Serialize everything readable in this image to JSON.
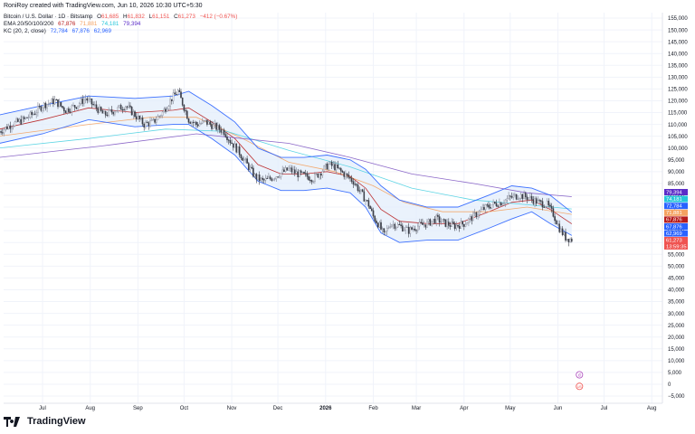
{
  "header": {
    "credit": "RoniRoy created with TradingView.com, Jun 10, 2026 10:30 UTC+5:30",
    "symbol": "Bitcoin / U.S. Dollar · 1D · Bitstamp",
    "ohlc": {
      "o_label": "O",
      "o_value": "61,685",
      "h_label": "H",
      "h_value": "61,832",
      "l_label": "L",
      "l_value": "61,151",
      "c_label": "C",
      "c_value": "61,273",
      "change": "−412 (−0.67%)"
    },
    "ema_label": "EMA 20/50/100/200",
    "ema_values": [
      "67,876",
      "71,881",
      "74,181",
      "79,394"
    ],
    "kc_label": "KC (20, 2, close)",
    "kc_values": [
      "72,784",
      "67,876",
      "62,969"
    ]
  },
  "brand": {
    "name": "TradingView"
  },
  "colors": {
    "up": "#26a69a",
    "down": "#ef5350",
    "candle": "#5d606b",
    "ema20": "#b71c1c",
    "ema50": "#f4a261",
    "ema100": "#4dd0e1",
    "ema200": "#7e57c2",
    "kc_line": "#2962ff",
    "kc_fill": "#e3edfb",
    "grid": "#f0f3fa",
    "text": "#131722"
  },
  "chart_data": {
    "type": "line",
    "ylim": [
      -5000,
      155000
    ],
    "y_ticks": [
      "155,000",
      "150,000",
      "145,000",
      "140,000",
      "135,000",
      "130,000",
      "125,000",
      "120,000",
      "115,000",
      "110,000",
      "105,000",
      "100,000",
      "95,000",
      "90,000",
      "85,000",
      "80,000",
      "75,000",
      "70,000",
      "65,000",
      "60,000",
      "55,000",
      "50,000",
      "45,000",
      "40,000",
      "35,000",
      "30,000",
      "25,000",
      "20,000",
      "15,000",
      "10,000",
      "5,000",
      "0",
      "−5,000"
    ],
    "x_ticks": [
      "Jul",
      "Aug",
      "Sep",
      "Oct",
      "Nov",
      "Dec",
      "2026",
      "Feb",
      "Mar",
      "Apr",
      "May",
      "Jun",
      "Jul",
      "Aug"
    ],
    "x_tick_days": [
      0,
      31,
      62,
      92,
      123,
      153,
      184,
      215,
      243,
      274,
      304,
      335,
      365,
      396
    ],
    "x_start": "2025-07-01",
    "last_close": 61273,
    "countdown": "13:59:35",
    "price_badges": [
      {
        "name": "EMA 200",
        "value": "79,394",
        "color": "#5b2cc8"
      },
      {
        "name": "EMA 100",
        "value": "74,181",
        "color": "#26c6da"
      },
      {
        "name": "KC upper",
        "value": "72,784",
        "color": "#2962ff"
      },
      {
        "name": "EMA 50",
        "value": "71,881",
        "color": "#f4a261"
      },
      {
        "name": "EMA 20",
        "value": "67,876",
        "color": "#b71c1c"
      },
      {
        "name": "KC basis",
        "value": "67,876",
        "color": "#2962ff"
      },
      {
        "name": "KC lower",
        "value": "62,969",
        "color": "#2962ff"
      },
      {
        "name": "Close",
        "value": "61,273",
        "color": "#ef5350"
      }
    ],
    "price_path": [
      [
        -28,
        107000
      ],
      [
        -20,
        110000
      ],
      [
        -12,
        112000
      ],
      [
        -5,
        115000
      ],
      [
        0,
        118000
      ],
      [
        8,
        120000
      ],
      [
        15,
        116000
      ],
      [
        22,
        118000
      ],
      [
        28,
        121000
      ],
      [
        35,
        117000
      ],
      [
        40,
        114000
      ],
      [
        47,
        116000
      ],
      [
        54,
        118000
      ],
      [
        60,
        114000
      ],
      [
        66,
        110000
      ],
      [
        72,
        111000
      ],
      [
        78,
        115000
      ],
      [
        84,
        121000
      ],
      [
        88,
        124000
      ],
      [
        91,
        119000
      ],
      [
        95,
        112000
      ],
      [
        100,
        110000
      ],
      [
        106,
        111000
      ],
      [
        112,
        109000
      ],
      [
        118,
        107000
      ],
      [
        122,
        103000
      ],
      [
        127,
        99000
      ],
      [
        132,
        94000
      ],
      [
        138,
        88000
      ],
      [
        143,
        86000
      ],
      [
        148,
        87000
      ],
      [
        154,
        89000
      ],
      [
        160,
        91000
      ],
      [
        166,
        89000
      ],
      [
        172,
        88000
      ],
      [
        176,
        87000
      ],
      [
        181,
        90000
      ],
      [
        186,
        93000
      ],
      [
        190,
        92000
      ],
      [
        196,
        89000
      ],
      [
        202,
        86000
      ],
      [
        208,
        80000
      ],
      [
        212,
        76000
      ],
      [
        215,
        71000
      ],
      [
        219,
        67000
      ],
      [
        222,
        63000
      ],
      [
        226,
        68000
      ],
      [
        232,
        67000
      ],
      [
        238,
        65000
      ],
      [
        244,
        67000
      ],
      [
        250,
        68000
      ],
      [
        256,
        70000
      ],
      [
        262,
        68000
      ],
      [
        268,
        67000
      ],
      [
        274,
        68000
      ],
      [
        280,
        71000
      ],
      [
        286,
        74000
      ],
      [
        292,
        76000
      ],
      [
        298,
        77000
      ],
      [
        304,
        79000
      ],
      [
        310,
        80000
      ],
      [
        316,
        79000
      ],
      [
        322,
        77000
      ],
      [
        328,
        76000
      ],
      [
        332,
        72000
      ],
      [
        336,
        66000
      ],
      [
        340,
        62000
      ],
      [
        344,
        61273
      ]
    ],
    "series": [
      {
        "name": "EMA 20",
        "values": [
          [
            -28,
            108000
          ],
          [
            0,
            112000
          ],
          [
            30,
            117000
          ],
          [
            60,
            115000
          ],
          [
            85,
            116000
          ],
          [
            95,
            117000
          ],
          [
            110,
            111000
          ],
          [
            125,
            104000
          ],
          [
            140,
            93000
          ],
          [
            155,
            89000
          ],
          [
            170,
            89000
          ],
          [
            185,
            90000
          ],
          [
            200,
            88000
          ],
          [
            210,
            83000
          ],
          [
            220,
            74000
          ],
          [
            232,
            69000
          ],
          [
            250,
            68000
          ],
          [
            270,
            68000
          ],
          [
            290,
            73000
          ],
          [
            305,
            77000
          ],
          [
            318,
            78000
          ],
          [
            330,
            74000
          ],
          [
            344,
            67876
          ]
        ]
      },
      {
        "name": "EMA 50",
        "values": [
          [
            -28,
            105000
          ],
          [
            30,
            110000
          ],
          [
            70,
            113000
          ],
          [
            100,
            113000
          ],
          [
            130,
            104000
          ],
          [
            160,
            94000
          ],
          [
            190,
            90000
          ],
          [
            215,
            84000
          ],
          [
            235,
            77000
          ],
          [
            260,
            73000
          ],
          [
            290,
            73000
          ],
          [
            315,
            75000
          ],
          [
            344,
            71881
          ]
        ]
      },
      {
        "name": "EMA 100",
        "values": [
          [
            -28,
            100000
          ],
          [
            30,
            104000
          ],
          [
            80,
            108000
          ],
          [
            120,
            107000
          ],
          [
            160,
            99000
          ],
          [
            200,
            92000
          ],
          [
            240,
            83000
          ],
          [
            280,
            78000
          ],
          [
            315,
            76000
          ],
          [
            344,
            74181
          ]
        ]
      },
      {
        "name": "EMA 200",
        "values": [
          [
            -28,
            96000
          ],
          [
            40,
            101000
          ],
          [
            100,
            106000
          ],
          [
            160,
            102000
          ],
          [
            200,
            96000
          ],
          [
            240,
            89000
          ],
          [
            280,
            85000
          ],
          [
            315,
            81000
          ],
          [
            344,
            79394
          ]
        ]
      },
      {
        "name": "KC upper",
        "values": [
          [
            -28,
            114000
          ],
          [
            0,
            118000
          ],
          [
            30,
            122000
          ],
          [
            60,
            121000
          ],
          [
            85,
            122000
          ],
          [
            95,
            124000
          ],
          [
            110,
            118000
          ],
          [
            125,
            111000
          ],
          [
            140,
            100000
          ],
          [
            155,
            96000
          ],
          [
            170,
            96000
          ],
          [
            185,
            97000
          ],
          [
            200,
            95000
          ],
          [
            210,
            91000
          ],
          [
            220,
            84000
          ],
          [
            232,
            78000
          ],
          [
            250,
            75000
          ],
          [
            270,
            75000
          ],
          [
            290,
            80000
          ],
          [
            305,
            84000
          ],
          [
            318,
            83000
          ],
          [
            330,
            80000
          ],
          [
            344,
            72784
          ]
        ]
      },
      {
        "name": "KC lower",
        "values": [
          [
            -28,
            102000
          ],
          [
            0,
            106000
          ],
          [
            30,
            112000
          ],
          [
            60,
            109000
          ],
          [
            85,
            110000
          ],
          [
            95,
            110000
          ],
          [
            110,
            104000
          ],
          [
            125,
            97000
          ],
          [
            140,
            86000
          ],
          [
            155,
            82000
          ],
          [
            170,
            82000
          ],
          [
            185,
            83000
          ],
          [
            200,
            81000
          ],
          [
            210,
            75000
          ],
          [
            220,
            64000
          ],
          [
            232,
            60000
          ],
          [
            250,
            61000
          ],
          [
            270,
            61000
          ],
          [
            290,
            66000
          ],
          [
            305,
            70000
          ],
          [
            318,
            73000
          ],
          [
            330,
            68000
          ],
          [
            344,
            62969
          ]
        ]
      }
    ],
    "markers": [
      {
        "name": "dividend-marker",
        "label": "d",
        "color": "#ab47bc",
        "y": 4000,
        "day": 349
      },
      {
        "name": "flag-marker",
        "label": "US",
        "color": "#ef5350",
        "y": -900,
        "day": 349
      }
    ]
  }
}
